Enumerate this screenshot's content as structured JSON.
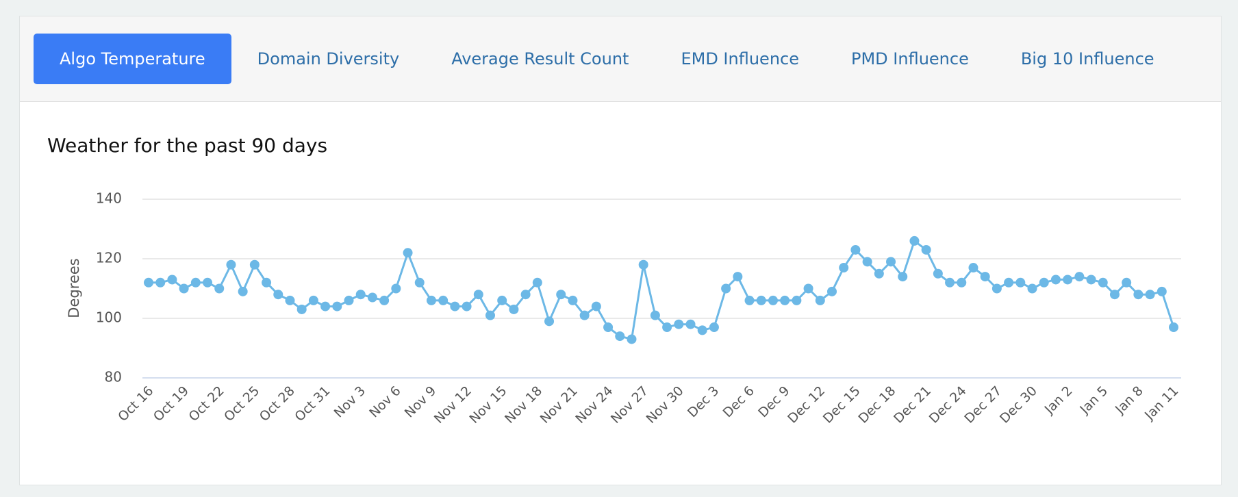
{
  "tabs": [
    {
      "label": "Algo Temperature",
      "active": true
    },
    {
      "label": "Domain Diversity",
      "active": false
    },
    {
      "label": "Average Result Count",
      "active": false
    },
    {
      "label": "EMD Influence",
      "active": false
    },
    {
      "label": "PMD Influence",
      "active": false
    },
    {
      "label": "Big 10 Influence",
      "active": false
    }
  ],
  "chart_data": {
    "type": "line",
    "title": "Weather for the past 90 days",
    "y_label": "Degrees",
    "categories": [
      "Oct 16",
      null,
      null,
      "Oct 19",
      null,
      null,
      "Oct 22",
      null,
      null,
      "Oct 25",
      null,
      null,
      "Oct 28",
      null,
      null,
      "Oct 31",
      null,
      null,
      "Nov 3",
      null,
      null,
      "Nov 6",
      null,
      null,
      "Nov 9",
      null,
      null,
      "Nov 12",
      null,
      null,
      "Nov 15",
      null,
      null,
      "Nov 18",
      null,
      null,
      "Nov 21",
      null,
      null,
      "Nov 24",
      null,
      null,
      "Nov 27",
      null,
      null,
      "Nov 30",
      null,
      null,
      "Dec 3",
      null,
      null,
      "Dec 6",
      null,
      null,
      "Dec 9",
      null,
      null,
      "Dec 12",
      null,
      null,
      "Dec 15",
      null,
      null,
      "Dec 18",
      null,
      null,
      "Dec 21",
      null,
      null,
      "Dec 24",
      null,
      null,
      "Dec 27",
      null,
      null,
      "Dec 30",
      null,
      null,
      "Jan 2",
      null,
      null,
      "Jan 5",
      null,
      null,
      "Jan 8",
      null,
      null,
      "Jan 11"
    ],
    "values": [
      112,
      112,
      113,
      110,
      112,
      112,
      110,
      118,
      109,
      118,
      112,
      108,
      106,
      103,
      106,
      104,
      104,
      106,
      108,
      107,
      106,
      110,
      122,
      112,
      106,
      106,
      104,
      104,
      108,
      101,
      106,
      103,
      108,
      112,
      99,
      108,
      106,
      101,
      104,
      97,
      94,
      93,
      118,
      101,
      97,
      98,
      98,
      96,
      97,
      110,
      114,
      106,
      106,
      106,
      106,
      106,
      110,
      106,
      109,
      117,
      123,
      119,
      115,
      119,
      114,
      126,
      123,
      115,
      112,
      112,
      117,
      114,
      110,
      112,
      112,
      110,
      112,
      113,
      113,
      114,
      113,
      112,
      108,
      112,
      108,
      108,
      109,
      97
    ],
    "color": "#6cb8e6",
    "ylim": [
      80,
      140
    ],
    "yticks": [
      80,
      100,
      120,
      140
    ],
    "grid": true,
    "markers": true
  }
}
